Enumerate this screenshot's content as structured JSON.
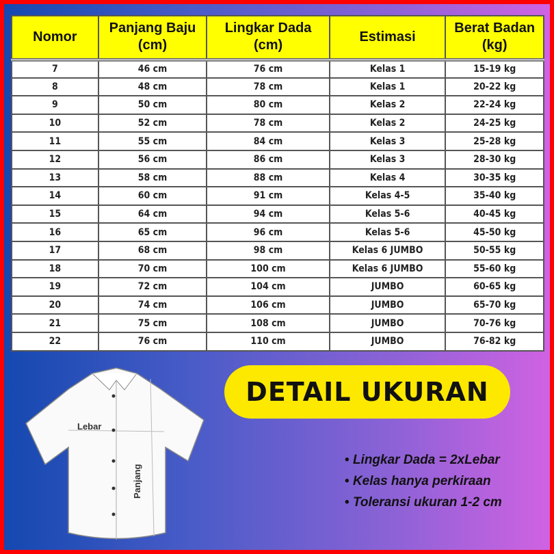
{
  "table": {
    "headers": [
      [
        "Nomor",
        ""
      ],
      [
        "Panjang Baju",
        "(cm)"
      ],
      [
        "Lingkar Dada",
        "(cm)"
      ],
      [
        "Estimasi",
        ""
      ],
      [
        "Berat Badan",
        "(kg)"
      ]
    ],
    "rows": [
      [
        "7",
        "46 cm",
        "76 cm",
        "Kelas 1",
        "15-19 kg"
      ],
      [
        "8",
        "48 cm",
        "78 cm",
        "Kelas 1",
        "20-22 kg"
      ],
      [
        "9",
        "50 cm",
        "80 cm",
        "Kelas 2",
        "22-24 kg"
      ],
      [
        "10",
        "52 cm",
        "78 cm",
        "Kelas 2",
        "24-25 kg"
      ],
      [
        "11",
        "55 cm",
        "84 cm",
        "Kelas 3",
        "25-28 kg"
      ],
      [
        "12",
        "56 cm",
        "86 cm",
        "Kelas 3",
        "28-30 kg"
      ],
      [
        "13",
        "58 cm",
        "88 cm",
        "Kelas 4",
        "30-35 kg"
      ],
      [
        "14",
        "60 cm",
        "91 cm",
        "Kelas 4-5",
        "35-40 kg"
      ],
      [
        "15",
        "64 cm",
        "94 cm",
        "Kelas 5-6",
        "40-45 kg"
      ],
      [
        "16",
        "65 cm",
        "96 cm",
        "Kelas 5-6",
        "45-50 kg"
      ],
      [
        "17",
        "68 cm",
        "98 cm",
        "Kelas 6 JUMBO",
        "50-55 kg"
      ],
      [
        "18",
        "70 cm",
        "100 cm",
        "Kelas 6 JUMBO",
        "55-60 kg"
      ],
      [
        "19",
        "72 cm",
        "104 cm",
        "JUMBO",
        "60-65 kg"
      ],
      [
        "20",
        "74 cm",
        "106 cm",
        "JUMBO",
        "65-70 kg"
      ],
      [
        "21",
        "75 cm",
        "108 cm",
        "JUMBO",
        "70-76 kg"
      ],
      [
        "22",
        "76 cm",
        "110 cm",
        "JUMBO",
        "76-82 kg"
      ]
    ]
  },
  "banner": {
    "title": "DETAIL UKURAN"
  },
  "shirt": {
    "label_width": "Lebar",
    "label_length": "Panjang"
  },
  "notes": [
    "Lingkar Dada = 2xLebar",
    "Kelas hanya perkiraan",
    "Toleransi ukuran 1-2 cm"
  ],
  "colors": {
    "border": "#ff0000",
    "header": "#ffff00",
    "banner": "#fde800",
    "gradient_start": "#1448b0",
    "gradient_end": "#d062e2"
  }
}
